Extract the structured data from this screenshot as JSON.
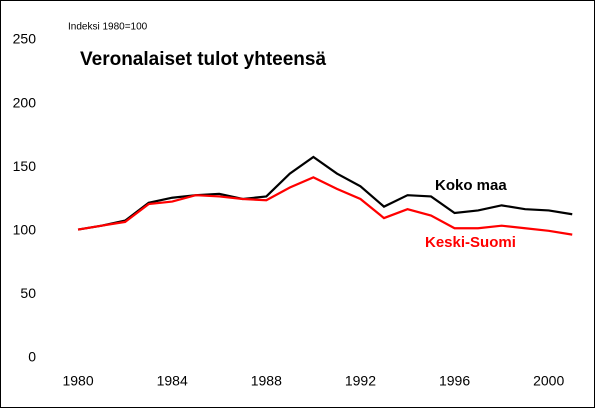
{
  "chart_data": {
    "type": "line",
    "title": "Veronalaiset tulot yhteensä",
    "subtitle": "Indeksi 1980=100",
    "x": [
      1980,
      1981,
      1982,
      1983,
      1984,
      1985,
      1986,
      1987,
      1988,
      1989,
      1990,
      1991,
      1992,
      1993,
      1994,
      1995,
      1996,
      1997,
      1998,
      1999,
      2000,
      2001
    ],
    "series": [
      {
        "name": "Koko maa",
        "color": "#000000",
        "values": [
          101,
          104,
          108,
          122,
          126,
          128,
          129,
          125,
          127,
          145,
          158,
          145,
          135,
          119,
          128,
          127,
          114,
          116,
          120,
          117,
          116,
          113
        ]
      },
      {
        "name": "Keski-Suomi",
        "color": "#ff0000",
        "values": [
          101,
          104,
          107,
          121,
          123,
          128,
          127,
          125,
          124,
          134,
          142,
          133,
          125,
          110,
          117,
          112,
          102,
          102,
          104,
          102,
          100,
          97
        ]
      }
    ],
    "xlim": [
      1978,
      2001.5
    ],
    "xticks": [
      1980,
      1984,
      1988,
      1992,
      1996,
      2000
    ],
    "ylim": [
      0,
      250
    ],
    "yticks": [
      0,
      50,
      100,
      150,
      200,
      250
    ],
    "grid": false
  }
}
